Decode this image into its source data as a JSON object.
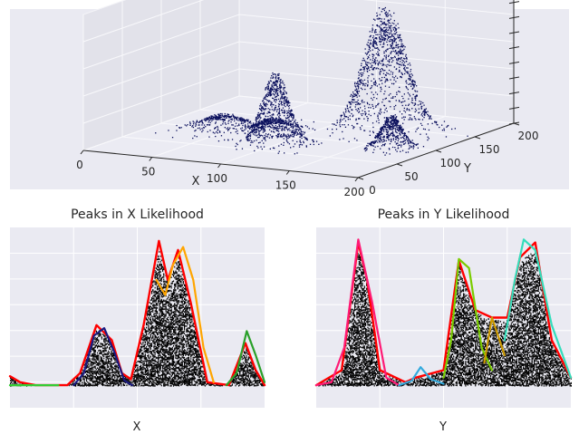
{
  "chart_data": [
    {
      "type": "scatter",
      "panel": "3d-scatter",
      "title": "",
      "xlabel": "X",
      "ylabel": "Y",
      "zlabel": "",
      "xticks": [
        0,
        50,
        100,
        150,
        200
      ],
      "yticks": [
        0,
        50,
        100,
        150,
        200
      ],
      "xlim": [
        0,
        200
      ],
      "ylim": [
        0,
        200
      ],
      "point_color": "#0a0f5c",
      "clusters": [
        {
          "x_center": 45,
          "y_center": 100,
          "spread": 14,
          "height": 0.12
        },
        {
          "x_center": 75,
          "y_center": 110,
          "spread": 10,
          "height": 0.1
        },
        {
          "x_center": 100,
          "y_center": 70,
          "spread": 9,
          "height": 0.55
        },
        {
          "x_center": 140,
          "y_center": 140,
          "spread": 14,
          "height": 0.95
        },
        {
          "x_center": 170,
          "y_center": 95,
          "spread": 7,
          "height": 0.25
        }
      ],
      "grid": true
    },
    {
      "type": "line",
      "panel": "peaks-x",
      "title": "Peaks in X Likelihood",
      "xlabel": "X",
      "ylabel": "",
      "xlim": [
        0,
        200
      ],
      "ylim": [
        -0.15,
        1.05
      ],
      "grid": true,
      "histogram_color": "#000000",
      "series": [
        {
          "color": "#ff0000",
          "points": [
            [
              0,
              0.06
            ],
            [
              8,
              0.02
            ],
            [
              20,
              0.0
            ],
            [
              45,
              0.0
            ],
            [
              55,
              0.08
            ],
            [
              68,
              0.4
            ],
            [
              80,
              0.3
            ],
            [
              88,
              0.08
            ],
            [
              95,
              0.04
            ],
            [
              105,
              0.4
            ],
            [
              117,
              0.96
            ],
            [
              124,
              0.7
            ],
            [
              132,
              0.9
            ],
            [
              142,
              0.55
            ],
            [
              155,
              0.02
            ],
            [
              172,
              0.0
            ],
            [
              185,
              0.28
            ],
            [
              193,
              0.1
            ],
            [
              200,
              0.0
            ]
          ]
        },
        {
          "color": "#33cc33",
          "points": [
            [
              0,
              0.0
            ],
            [
              20,
              0.0
            ],
            [
              38,
              0.0
            ]
          ]
        },
        {
          "color": "#1a1a80",
          "points": [
            [
              50,
              0.0
            ],
            [
              58,
              0.08
            ],
            [
              66,
              0.33
            ],
            [
              74,
              0.38
            ],
            [
              82,
              0.22
            ],
            [
              90,
              0.03
            ],
            [
              96,
              0.0
            ]
          ]
        },
        {
          "color": "#ffa500",
          "points": [
            [
              115,
              0.7
            ],
            [
              122,
              0.6
            ],
            [
              128,
              0.8
            ],
            [
              136,
              0.92
            ],
            [
              144,
              0.7
            ],
            [
              152,
              0.25
            ],
            [
              160,
              0.02
            ]
          ]
        },
        {
          "color": "#2aa02a",
          "points": [
            [
              170,
              0.0
            ],
            [
              178,
              0.08
            ],
            [
              186,
              0.36
            ],
            [
              193,
              0.2
            ],
            [
              200,
              0.02
            ]
          ]
        }
      ]
    },
    {
      "type": "line",
      "panel": "peaks-y",
      "title": "Peaks in Y Likelihood",
      "xlabel": "Y",
      "ylabel": "",
      "xlim": [
        0,
        200
      ],
      "ylim": [
        -0.15,
        1.05
      ],
      "grid": true,
      "histogram_color": "#000000",
      "series": [
        {
          "color": "#ff0000",
          "points": [
            [
              0,
              0.0
            ],
            [
              20,
              0.1
            ],
            [
              33,
              0.95
            ],
            [
              40,
              0.7
            ],
            [
              50,
              0.1
            ],
            [
              70,
              0.02
            ],
            [
              78,
              0.05
            ],
            [
              100,
              0.1
            ],
            [
              112,
              0.83
            ],
            [
              125,
              0.5
            ],
            [
              138,
              0.45
            ],
            [
              150,
              0.45
            ],
            [
              160,
              0.85
            ],
            [
              172,
              0.95
            ],
            [
              185,
              0.3
            ],
            [
              200,
              0.05
            ]
          ]
        },
        {
          "color": "#ff1a75",
          "points": [
            [
              0,
              0.0
            ],
            [
              12,
              0.02
            ],
            [
              22,
              0.25
            ],
            [
              33,
              0.97
            ],
            [
              44,
              0.55
            ],
            [
              55,
              0.05
            ],
            [
              65,
              0.0
            ]
          ]
        },
        {
          "color": "#33aadd",
          "points": [
            [
              65,
              0.0
            ],
            [
              75,
              0.03
            ],
            [
              82,
              0.12
            ],
            [
              90,
              0.04
            ],
            [
              100,
              0.01
            ]
          ]
        },
        {
          "color": "#7acc00",
          "points": [
            [
              100,
              0.05
            ],
            [
              106,
              0.3
            ],
            [
              112,
              0.84
            ],
            [
              120,
              0.78
            ],
            [
              130,
              0.25
            ],
            [
              138,
              0.1
            ]
          ]
        },
        {
          "color": "#cc9900",
          "points": [
            [
              132,
              0.15
            ],
            [
              138,
              0.45
            ],
            [
              144,
              0.3
            ],
            [
              148,
              0.2
            ]
          ]
        },
        {
          "color": "#33ddbb",
          "points": [
            [
              148,
              0.3
            ],
            [
              156,
              0.7
            ],
            [
              163,
              0.97
            ],
            [
              172,
              0.9
            ],
            [
              185,
              0.4
            ],
            [
              200,
              0.05
            ]
          ]
        }
      ]
    }
  ]
}
